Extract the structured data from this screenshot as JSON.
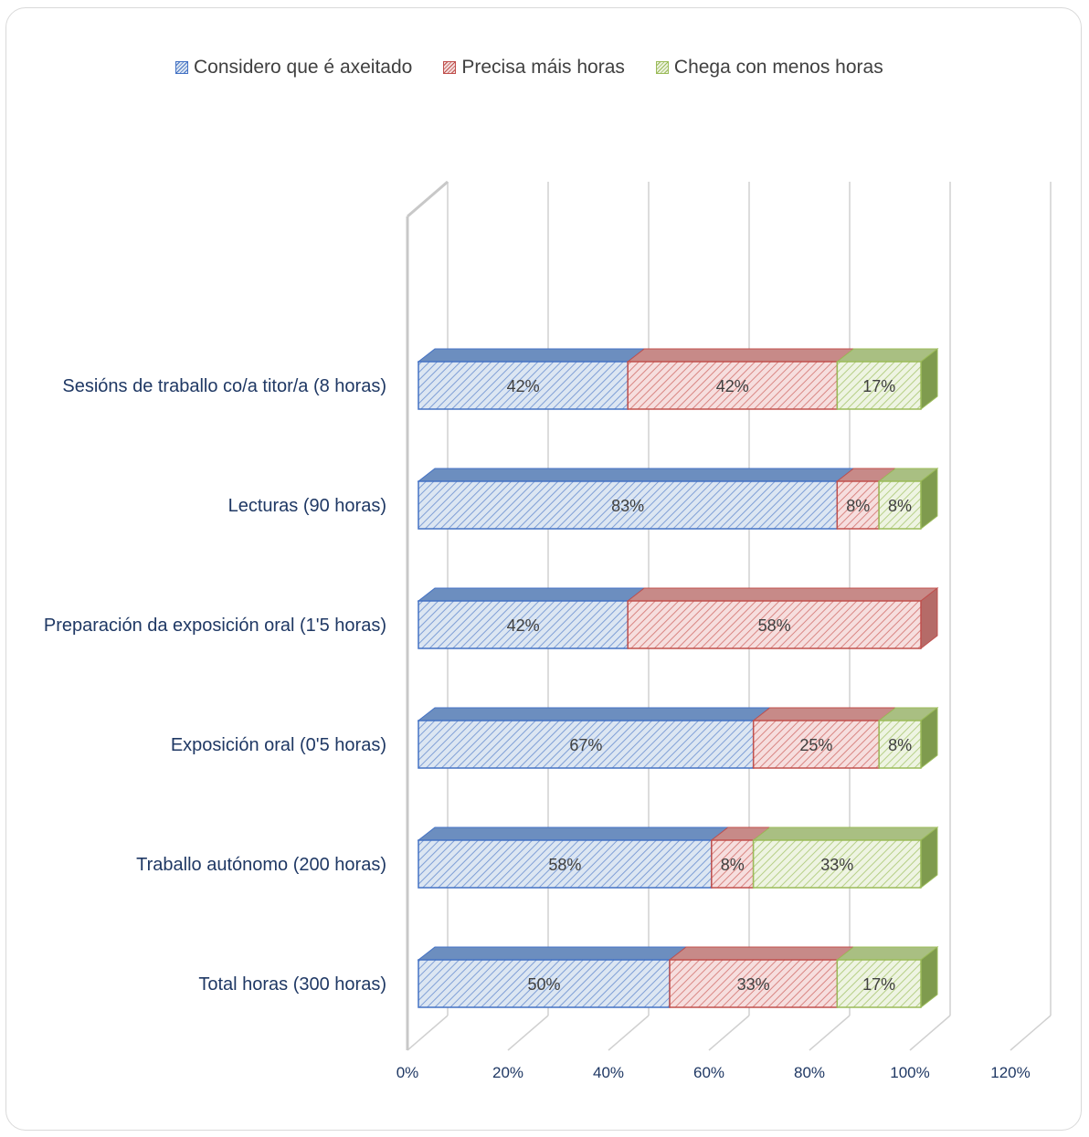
{
  "chart_data": {
    "type": "bar",
    "orientation": "horizontal",
    "stacked": true,
    "style": "3d",
    "categories": [
      "Sesións de traballo co/a titor/a (8 horas)",
      "Lecturas (90 horas)",
      "Preparación da exposición oral (1'5 horas)",
      "Exposición oral (0'5 horas)",
      "Traballo autónomo (200 horas)",
      "Total horas (300 horas)"
    ],
    "series": [
      {
        "name": "Considero que é axeitado",
        "color": "#4472c4",
        "values": [
          41.67,
          83.33,
          41.67,
          66.67,
          58.33,
          50.0
        ],
        "labels": [
          "42%",
          "83%",
          "42%",
          "67%",
          "58%",
          "50%"
        ]
      },
      {
        "name": "Precisa máis horas",
        "color": "#c0504d",
        "values": [
          41.67,
          8.33,
          58.33,
          25.0,
          8.33,
          33.33
        ],
        "labels": [
          "42%",
          "8%",
          "58%",
          "25%",
          "8%",
          "33%"
        ]
      },
      {
        "name": "Chega con menos horas",
        "color": "#9bbb59",
        "values": [
          16.67,
          8.33,
          0,
          8.33,
          33.33,
          16.67
        ],
        "labels": [
          "17%",
          "8%",
          "",
          "8%",
          "33%",
          "17%"
        ]
      }
    ],
    "x_ticks": [
      "0%",
      "20%",
      "40%",
      "60%",
      "80%",
      "100%",
      "120%"
    ],
    "xlim": [
      0,
      120
    ],
    "legend_position": "top",
    "grid": true
  }
}
